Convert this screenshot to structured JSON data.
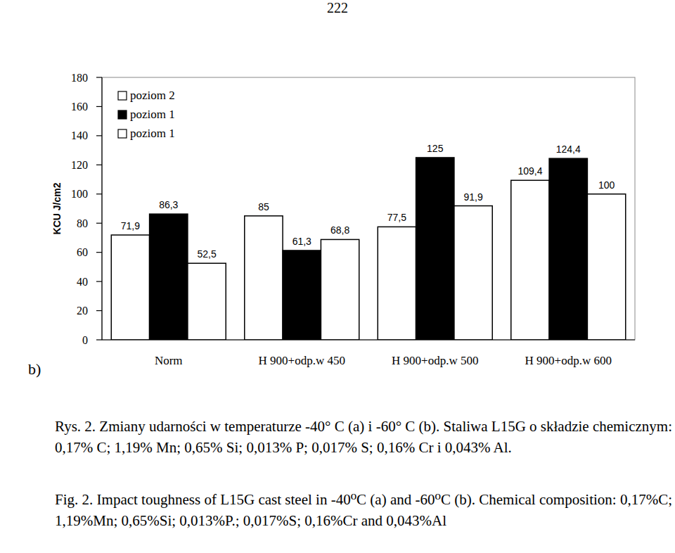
{
  "page_number": "222",
  "panel_label": "b)",
  "caption_pl": "Rys. 2. Zmiany udarności w temperaturze -40° C (a) i -60° C (b). Staliwa L15G o składzie chemicznym: 0,17% C; 1,19% Mn; 0,65% Si; 0,013% P; 0,017% S; 0,16% Cr i 0,043% Al.",
  "caption_en": "Fig. 2. Impact toughness of L15G cast steel in -40⁰C (a) and -60⁰C (b). Chemical composition: 0,17%C; 1,19%Mn; 0,65%Si; 0,013%P.; 0,017%S; 0,16%Cr and 0,043%Al",
  "chart_data": {
    "type": "bar",
    "y_label": "KCU J/cm2",
    "categories": [
      "Norm",
      "H 900+odp.w 450",
      "H 900+odp.w 500",
      "H 900+odp.w 600"
    ],
    "series": [
      {
        "name": "poziom 2",
        "color": "#ffffff",
        "values": [
          71.9,
          85,
          77.5,
          109.4
        ],
        "value_labels": [
          "71,9",
          "85",
          "77,5",
          "109,4"
        ]
      },
      {
        "name": "poziom 1",
        "color": "#000000",
        "values": [
          86.3,
          61.3,
          125,
          124.4
        ],
        "value_labels": [
          "86,3",
          "61,3",
          "125",
          "124,4"
        ]
      },
      {
        "name": "poziom 1",
        "color": "#ffffff",
        "values": [
          52.5,
          68.8,
          91.9,
          100
        ],
        "value_labels": [
          "52,5",
          "68,8",
          "91,9",
          "100"
        ]
      }
    ],
    "ylim": [
      0,
      180
    ],
    "yticks": [
      0,
      20,
      40,
      60,
      80,
      100,
      120,
      140,
      160,
      180
    ],
    "grid": false,
    "legend": "top-left",
    "data_labels": true
  }
}
